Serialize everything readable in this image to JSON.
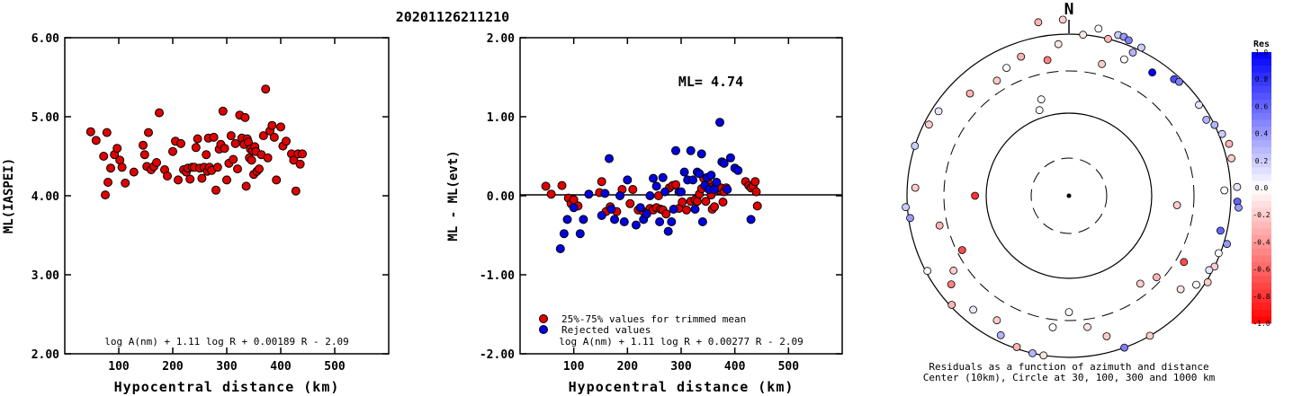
{
  "page_title": "20201126211210",
  "chart_data": [
    {
      "type": "scatter",
      "ylabel": "ML(IASPEI)",
      "xlabel": "Hypocentral distance (km)",
      "xlim": [
        0,
        600
      ],
      "ylim": [
        2.0,
        6.0
      ],
      "x_ticks": [
        "100",
        "200",
        "300",
        "400",
        "500"
      ],
      "y_ticks": [
        "2.00",
        "3.00",
        "4.00",
        "5.00",
        "6.00"
      ],
      "annotation": "log A(nm) + 1.11 log R + 0.00189 R - 2.09",
      "series": [
        {
          "color": "#e00000",
          "points": [
            [
              48,
              4.81
            ],
            [
              58,
              4.7
            ],
            [
              72,
              4.5
            ],
            [
              75,
              4.01
            ],
            [
              78,
              4.8
            ],
            [
              80,
              4.17
            ],
            [
              85,
              4.35
            ],
            [
              92,
              4.52
            ],
            [
              97,
              4.6
            ],
            [
              102,
              4.45
            ],
            [
              106,
              4.36
            ],
            [
              112,
              4.16
            ],
            [
              128,
              4.3
            ],
            [
              145,
              4.64
            ],
            [
              148,
              4.52
            ],
            [
              152,
              4.37
            ],
            [
              155,
              4.8
            ],
            [
              160,
              4.33
            ],
            [
              165,
              4.37
            ],
            [
              170,
              4.42
            ],
            [
              175,
              5.05
            ],
            [
              185,
              4.33
            ],
            [
              190,
              4.25
            ],
            [
              200,
              4.56
            ],
            [
              205,
              4.69
            ],
            [
              210,
              4.2
            ],
            [
              215,
              4.66
            ],
            [
              220,
              4.33
            ],
            [
              225,
              4.3
            ],
            [
              228,
              4.35
            ],
            [
              232,
              4.21
            ],
            [
              236,
              4.36
            ],
            [
              240,
              4.36
            ],
            [
              243,
              4.61
            ],
            [
              246,
              4.72
            ],
            [
              250,
              4.35
            ],
            [
              254,
              4.22
            ],
            [
              258,
              4.36
            ],
            [
              262,
              4.52
            ],
            [
              264,
              4.31
            ],
            [
              266,
              4.73
            ],
            [
              268,
              4.36
            ],
            [
              272,
              4.32
            ],
            [
              276,
              4.74
            ],
            [
              280,
              4.07
            ],
            [
              283,
              4.36
            ],
            [
              286,
              4.59
            ],
            [
              289,
              4.65
            ],
            [
              293,
              5.07
            ],
            [
              296,
              4.6
            ],
            [
              300,
              4.2
            ],
            [
              304,
              4.41
            ],
            [
              308,
              4.76
            ],
            [
              312,
              4.46
            ],
            [
              316,
              4.66
            ],
            [
              320,
              4.34
            ],
            [
              324,
              5.02
            ],
            [
              328,
              4.73
            ],
            [
              332,
              4.65
            ],
            [
              334,
              4.99
            ],
            [
              336,
              4.12
            ],
            [
              338,
              4.72
            ],
            [
              340,
              4.68
            ],
            [
              342,
              4.48
            ],
            [
              344,
              4.59
            ],
            [
              346,
              4.45
            ],
            [
              348,
              4.57
            ],
            [
              350,
              4.27
            ],
            [
              352,
              4.62
            ],
            [
              354,
              4.56
            ],
            [
              356,
              4.31
            ],
            [
              360,
              4.34
            ],
            [
              364,
              4.52
            ],
            [
              368,
              4.76
            ],
            [
              372,
              5.35
            ],
            [
              376,
              4.48
            ],
            [
              380,
              4.82
            ],
            [
              384,
              4.89
            ],
            [
              388,
              4.74
            ],
            [
              392,
              4.2
            ],
            [
              400,
              4.87
            ],
            [
              404,
              4.63
            ],
            [
              410,
              4.69
            ],
            [
              420,
              4.53
            ],
            [
              424,
              4.45
            ],
            [
              428,
              4.06
            ],
            [
              432,
              4.53
            ],
            [
              436,
              4.4
            ],
            [
              440,
              4.53
            ]
          ]
        }
      ]
    },
    {
      "type": "scatter",
      "ylabel": "ML - ML(evt)",
      "xlabel": "Hypocentral distance (km)",
      "xlim": [
        0,
        600
      ],
      "ylim": [
        -2.0,
        2.0
      ],
      "x_ticks": [
        "100",
        "200",
        "300",
        "400",
        "500"
      ],
      "y_ticks": [
        "-2.00",
        "-1.00",
        "0.00",
        "1.00",
        "2.00"
      ],
      "headline": "ML= 4.74",
      "annotation": "log A(nm) + 1.11 log R + 0.00277 R - 2.09",
      "legend": [
        "25%-75% values for trimmed mean",
        "Rejected values"
      ],
      "series": [
        {
          "name": "25%-75% values for trimmed mean",
          "color": "#e00000",
          "points": [
            [
              48,
              0.12
            ],
            [
              58,
              0.02
            ],
            [
              78,
              0.13
            ],
            [
              90,
              -0.03
            ],
            [
              95,
              -0.1
            ],
            [
              100,
              -0.05
            ],
            [
              108,
              -0.13
            ],
            [
              148,
              0.04
            ],
            [
              152,
              0.18
            ],
            [
              160,
              -0.2
            ],
            [
              168,
              -0.14
            ],
            [
              180,
              -0.2
            ],
            [
              190,
              0.08
            ],
            [
              205,
              -0.1
            ],
            [
              210,
              0.08
            ],
            [
              220,
              -0.18
            ],
            [
              230,
              -0.2
            ],
            [
              236,
              -0.21
            ],
            [
              242,
              -0.16
            ],
            [
              248,
              -0.18
            ],
            [
              254,
              -0.15
            ],
            [
              258,
              0.0
            ],
            [
              262,
              -0.17
            ],
            [
              266,
              -0.18
            ],
            [
              272,
              -0.23
            ],
            [
              278,
              0.1
            ],
            [
              284,
              0.13
            ],
            [
              290,
              0.14
            ],
            [
              296,
              -0.16
            ],
            [
              302,
              -0.08
            ],
            [
              310,
              -0.18
            ],
            [
              318,
              -0.07
            ],
            [
              326,
              -0.05
            ],
            [
              330,
              -0.07
            ],
            [
              334,
              0.02
            ],
            [
              338,
              0.09
            ],
            [
              342,
              0.22
            ],
            [
              346,
              -0.07
            ],
            [
              350,
              0.17
            ],
            [
              354,
              0.1
            ],
            [
              356,
              0.01
            ],
            [
              358,
              -0.17
            ],
            [
              362,
              -0.14
            ],
            [
              366,
              0.13
            ],
            [
              370,
              0.07
            ],
            [
              374,
              0.1
            ],
            [
              378,
              -0.08
            ],
            [
              380,
              0.05
            ],
            [
              384,
              0.1
            ],
            [
              420,
              0.18
            ],
            [
              426,
              0.13
            ],
            [
              430,
              0.1
            ],
            [
              434,
              0.12
            ],
            [
              438,
              0.18
            ],
            [
              440,
              0.05
            ],
            [
              442,
              -0.13
            ]
          ]
        },
        {
          "name": "Rejected values",
          "color": "#0000e0",
          "points": [
            [
              75,
              -0.67
            ],
            [
              82,
              -0.48
            ],
            [
              88,
              -0.3
            ],
            [
              100,
              -0.15
            ],
            [
              112,
              -0.48
            ],
            [
              118,
              -0.3
            ],
            [
              128,
              0.02
            ],
            [
              152,
              -0.25
            ],
            [
              158,
              0.03
            ],
            [
              166,
              0.47
            ],
            [
              170,
              -0.17
            ],
            [
              176,
              -0.3
            ],
            [
              186,
              0.0
            ],
            [
              194,
              -0.33
            ],
            [
              200,
              0.2
            ],
            [
              216,
              -0.37
            ],
            [
              224,
              -0.15
            ],
            [
              230,
              -0.3
            ],
            [
              236,
              -0.23
            ],
            [
              242,
              0.0
            ],
            [
              248,
              0.22
            ],
            [
              254,
              0.12
            ],
            [
              260,
              -0.33
            ],
            [
              266,
              0.23
            ],
            [
              270,
              0.05
            ],
            [
              276,
              -0.45
            ],
            [
              282,
              -0.33
            ],
            [
              286,
              -0.17
            ],
            [
              290,
              0.57
            ],
            [
              296,
              0.05
            ],
            [
              300,
              0.05
            ],
            [
              306,
              0.3
            ],
            [
              312,
              0.2
            ],
            [
              318,
              0.57
            ],
            [
              322,
              0.2
            ],
            [
              326,
              -0.17
            ],
            [
              330,
              0.3
            ],
            [
              334,
              0.28
            ],
            [
              338,
              0.53
            ],
            [
              340,
              -0.33
            ],
            [
              344,
              0.13
            ],
            [
              348,
              0.23
            ],
            [
              352,
              0.08
            ],
            [
              356,
              0.26
            ],
            [
              362,
              0.08
            ],
            [
              366,
              0.17
            ],
            [
              372,
              0.93
            ],
            [
              376,
              0.43
            ],
            [
              380,
              0.41
            ],
            [
              386,
              0.08
            ],
            [
              392,
              0.48
            ],
            [
              400,
              0.35
            ],
            [
              406,
              0.32
            ],
            [
              430,
              -0.3
            ]
          ]
        }
      ]
    },
    {
      "type": "polar-scatter",
      "north_label": "N",
      "caption_line1": "Residuals as a function of azimuth and distance",
      "caption_line2": "Center (10km), Circle at 30, 100, 300 and 1000 km",
      "colorbar_title": "Res",
      "colorbar_ticks": [
        "1.0",
        "0.8",
        "0.6",
        "0.4",
        "0.2",
        "0.0",
        "-0.2",
        "-0.4",
        "-0.6",
        "-0.8",
        "-1.0"
      ],
      "points": [
        [
          -10,
          1.09,
          -0.3
        ],
        [
          -2,
          1.09,
          -0.2
        ],
        [
          5,
          1.0,
          -0.1
        ],
        [
          10,
          1.05,
          0.0
        ],
        [
          14,
          1.0,
          -0.3
        ],
        [
          17,
          1.04,
          0.2
        ],
        [
          19,
          1.04,
          0.4
        ],
        [
          21,
          1.03,
          0.5
        ],
        [
          24,
          0.97,
          0.3
        ],
        [
          26,
          1.02,
          0.2
        ],
        [
          22,
          0.91,
          0.0
        ],
        [
          14,
          0.84,
          -0.2
        ],
        [
          34,
          0.92,
          1.0
        ],
        [
          42,
          0.97,
          0.7
        ],
        [
          44,
          0.98,
          0.5
        ],
        [
          55,
          0.98,
          0.1
        ],
        [
          61,
          0.97,
          0.3
        ],
        [
          64,
          1.0,
          0.3
        ],
        [
          68,
          1.02,
          0.2
        ],
        [
          72,
          1.04,
          -0.3
        ],
        [
          77,
          1.03,
          -0.2
        ],
        [
          87,
          1.04,
          0.1
        ],
        [
          92,
          1.04,
          0.6
        ],
        [
          94,
          1.05,
          0.4
        ],
        [
          88,
          0.96,
          0.0
        ],
        [
          95,
          0.67,
          -0.2
        ],
        [
          103,
          0.96,
          0.6
        ],
        [
          107,
          1.02,
          0.4
        ],
        [
          111,
          0.99,
          0.0
        ],
        [
          116,
          1.0,
          -0.2
        ],
        [
          118,
          0.98,
          0.1
        ],
        [
          122,
          1.01,
          -0.2
        ],
        [
          125,
          0.96,
          0.0
        ],
        [
          120,
          0.82,
          -0.7
        ],
        [
          133,
          0.74,
          -0.3
        ],
        [
          141,
          0.7,
          -0.2
        ],
        [
          130,
          0.9,
          -0.1
        ],
        [
          150,
          1.0,
          -0.2
        ],
        [
          160,
          1.0,
          0.5
        ],
        [
          165,
          0.9,
          -0.2
        ],
        [
          172,
          0.82,
          -0.1
        ],
        [
          180,
          0.72,
          0.0
        ],
        [
          187,
          0.82,
          0.0
        ],
        [
          189,
          1.0,
          -0.1
        ],
        [
          193,
          1.0,
          0.3
        ],
        [
          199,
          0.99,
          -0.3
        ],
        [
          206,
          0.96,
          0.3
        ],
        [
          210,
          0.89,
          -0.2
        ],
        [
          220,
          0.92,
          0.1
        ],
        [
          227,
          0.99,
          -0.3
        ],
        [
          233,
          0.91,
          -0.5
        ],
        [
          237,
          0.85,
          -0.2
        ],
        [
          242,
          0.99,
          0.0
        ],
        [
          243,
          0.74,
          -0.7
        ],
        [
          257,
          0.82,
          -0.3
        ],
        [
          262,
          0.99,
          0.4
        ],
        [
          266,
          1.01,
          0.2
        ],
        [
          273,
          0.95,
          -0.2
        ],
        [
          288,
          1.0,
          0.2
        ],
        [
          297,
          0.97,
          -0.2
        ],
        [
          303,
          0.96,
          0.1
        ],
        [
          316,
          0.88,
          -0.3
        ],
        [
          328,
          0.84,
          -0.2
        ],
        [
          334,
          0.88,
          0.0
        ],
        [
          341,
          0.91,
          -0.3
        ],
        [
          341,
          0.56,
          0.0
        ],
        [
          351,
          0.85,
          -0.5
        ],
        [
          356,
          0.94,
          -0.1
        ],
        [
          344,
          0.62,
          0.0
        ],
        [
          270,
          0.58,
          -0.8
        ]
      ]
    }
  ]
}
